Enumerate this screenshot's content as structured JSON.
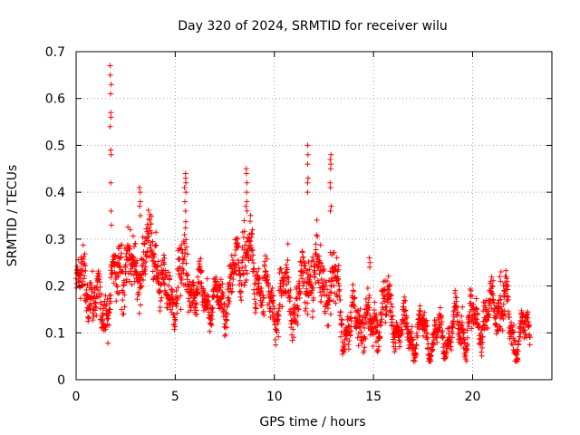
{
  "chart_data": {
    "type": "scatter",
    "title": "Day 320 of 2024, SRMTID for receiver wilu",
    "xlabel": "GPS time / hours",
    "ylabel": "SRMTID / TECUs",
    "xlim": [
      0,
      24
    ],
    "ylim": [
      0,
      0.7
    ],
    "xticks": [
      0,
      5,
      10,
      15,
      20
    ],
    "yticks": [
      0,
      0.1,
      0.2,
      0.3,
      0.4,
      0.5,
      0.6,
      0.7
    ],
    "xtick_labels": [
      "0",
      "5",
      "10",
      "15",
      "20"
    ],
    "ytick_labels": [
      "0",
      "0.1",
      "0.2",
      "0.3",
      "0.4",
      "0.5",
      "0.6",
      "0.7"
    ],
    "marker": "+",
    "grid": true,
    "series": [
      {
        "name": "SRMTID",
        "color": "#ff0000",
        "envelope_hours": [
          0,
          0.5,
          1,
          1.5,
          2,
          2.5,
          3,
          3.5,
          4,
          4.5,
          5,
          5.5,
          6,
          6.5,
          7,
          7.5,
          8,
          8.5,
          9,
          9.5,
          10,
          10.5,
          11,
          11.5,
          12,
          12.5,
          13,
          13.5,
          14,
          14.5,
          15,
          15.5,
          16,
          16.5,
          17,
          17.5,
          18,
          18.5,
          19,
          19.5,
          20,
          20.5,
          21,
          21.5,
          22,
          22.5,
          22.9
        ],
        "envelope_mean": [
          0.19,
          0.22,
          0.15,
          0.16,
          0.22,
          0.25,
          0.22,
          0.27,
          0.28,
          0.17,
          0.19,
          0.24,
          0.18,
          0.19,
          0.16,
          0.17,
          0.22,
          0.29,
          0.22,
          0.2,
          0.14,
          0.2,
          0.16,
          0.2,
          0.24,
          0.19,
          0.22,
          0.11,
          0.12,
          0.14,
          0.09,
          0.17,
          0.13,
          0.1,
          0.1,
          0.1,
          0.09,
          0.09,
          0.11,
          0.11,
          0.12,
          0.13,
          0.15,
          0.17,
          0.1,
          0.09,
          0.11
        ],
        "envelope_spread": [
          0.04,
          0.07,
          0.04,
          0.05,
          0.07,
          0.07,
          0.07,
          0.07,
          0.06,
          0.05,
          0.06,
          0.08,
          0.04,
          0.04,
          0.04,
          0.04,
          0.06,
          0.07,
          0.05,
          0.06,
          0.05,
          0.06,
          0.05,
          0.07,
          0.07,
          0.06,
          0.07,
          0.04,
          0.04,
          0.06,
          0.04,
          0.05,
          0.04,
          0.03,
          0.03,
          0.03,
          0.03,
          0.03,
          0.03,
          0.04,
          0.04,
          0.04,
          0.05,
          0.04,
          0.04,
          0.03,
          0.04
        ],
        "point_count": 2200,
        "spikes": [
          {
            "x": 1.75,
            "values": [
              0.67,
              0.65,
              0.63,
              0.61,
              0.57,
              0.56,
              0.54,
              0.49,
              0.48,
              0.42,
              0.36,
              0.33
            ]
          },
          {
            "x": 3.2,
            "values": [
              0.41,
              0.4,
              0.38,
              0.37,
              0.35
            ]
          },
          {
            "x": 5.5,
            "values": [
              0.44,
              0.43,
              0.42,
              0.41,
              0.4,
              0.38,
              0.36
            ]
          },
          {
            "x": 8.6,
            "values": [
              0.45,
              0.44,
              0.42,
              0.4,
              0.38,
              0.37,
              0.36
            ]
          },
          {
            "x": 11.7,
            "values": [
              0.5,
              0.48,
              0.46,
              0.43,
              0.42,
              0.4
            ]
          },
          {
            "x": 12.85,
            "values": [
              0.48,
              0.47,
              0.46,
              0.45,
              0.42,
              0.41,
              0.37,
              0.36
            ]
          },
          {
            "x": 14.8,
            "values": [
              0.26,
              0.25,
              0.24
            ]
          },
          {
            "x": 21.4,
            "values": [
              0.23,
              0.22,
              0.21
            ]
          }
        ]
      }
    ]
  }
}
